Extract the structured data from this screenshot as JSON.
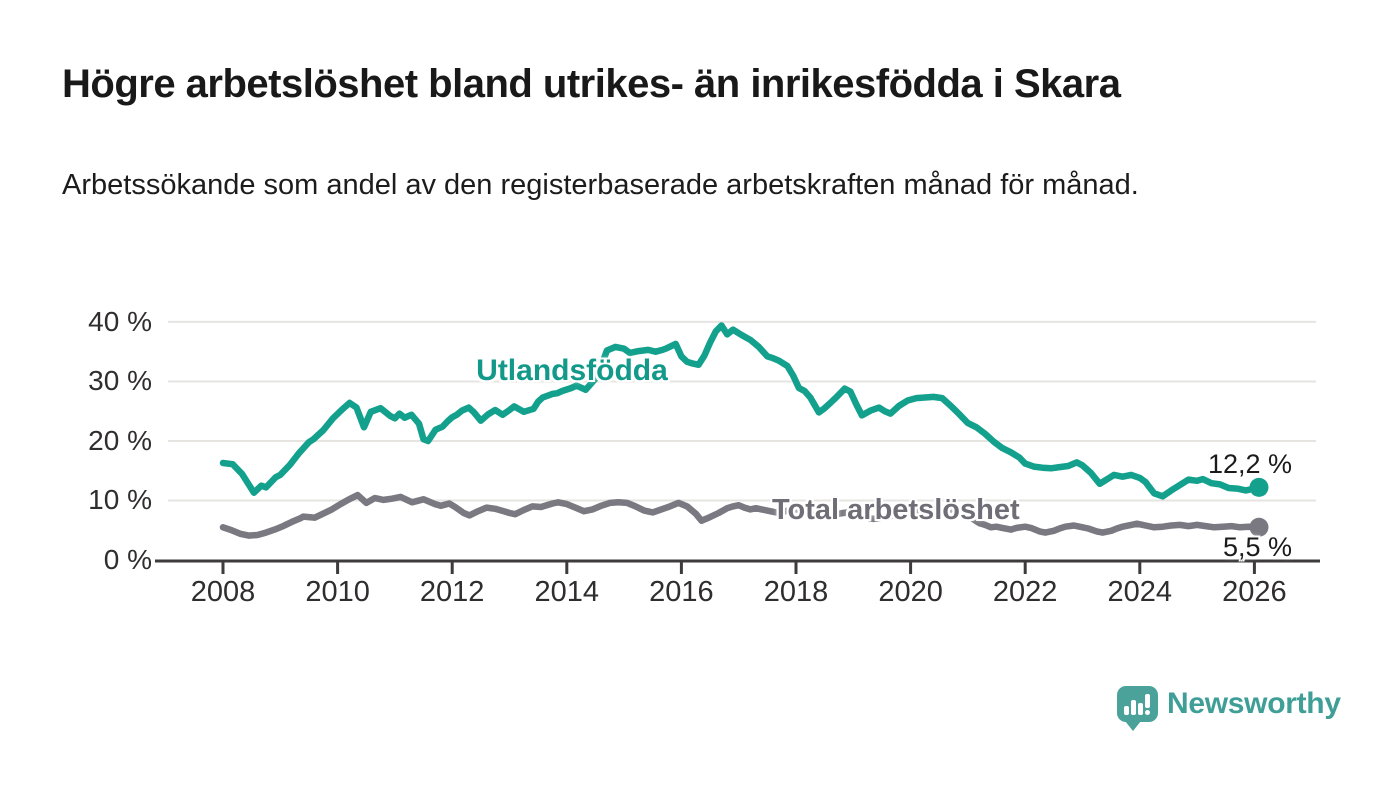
{
  "header": {
    "title": "Högre arbetslöshet bland utrikes- än inrikesfödda i Skara",
    "subtitle": "Arbetssökande som andel av den registerbaserade arbetskraften månad för månad."
  },
  "chart_data": {
    "type": "line",
    "grid": "horizontal",
    "x_axis": {
      "range": [
        2007.4,
        2027.2
      ],
      "ticks": [
        {
          "value": 2008,
          "label": "2008"
        },
        {
          "value": 2010,
          "label": "2010"
        },
        {
          "value": 2012,
          "label": "2012"
        },
        {
          "value": 2014,
          "label": "2014"
        },
        {
          "value": 2016,
          "label": "2016"
        },
        {
          "value": 2018,
          "label": "2018"
        },
        {
          "value": 2020,
          "label": "2020"
        },
        {
          "value": 2022,
          "label": "2022"
        },
        {
          "value": 2024,
          "label": "2024"
        },
        {
          "value": 2026,
          "label": "2026"
        }
      ]
    },
    "y_axis": {
      "unit": "%",
      "range": [
        0,
        42
      ],
      "ticks": [
        {
          "value": 40,
          "label": "40 %"
        },
        {
          "value": 30,
          "label": "30 %"
        },
        {
          "value": 20,
          "label": "20 %"
        },
        {
          "value": 10,
          "label": "10 %"
        },
        {
          "value": 0,
          "label": "0 %"
        }
      ]
    },
    "series": [
      {
        "name": "Utlandsfödda",
        "color": "#13a18d",
        "label_color": "#12998a",
        "end_value": 12.2,
        "end_label": "12,2 %",
        "points": [
          [
            2008.0,
            16.3
          ],
          [
            2008.17,
            16.1
          ],
          [
            2008.33,
            14.5
          ],
          [
            2008.54,
            11.3
          ],
          [
            2008.67,
            12.5
          ],
          [
            2008.75,
            12.2
          ],
          [
            2008.92,
            13.9
          ],
          [
            2009.0,
            14.3
          ],
          [
            2009.17,
            16.0
          ],
          [
            2009.33,
            18.0
          ],
          [
            2009.5,
            19.8
          ],
          [
            2009.58,
            20.3
          ],
          [
            2009.75,
            21.8
          ],
          [
            2009.92,
            23.8
          ],
          [
            2010.08,
            25.3
          ],
          [
            2010.21,
            26.4
          ],
          [
            2010.33,
            25.6
          ],
          [
            2010.46,
            22.3
          ],
          [
            2010.58,
            24.9
          ],
          [
            2010.75,
            25.5
          ],
          [
            2010.92,
            24.2
          ],
          [
            2011.0,
            23.8
          ],
          [
            2011.08,
            24.6
          ],
          [
            2011.17,
            23.9
          ],
          [
            2011.29,
            24.4
          ],
          [
            2011.42,
            22.9
          ],
          [
            2011.5,
            20.3
          ],
          [
            2011.58,
            20.0
          ],
          [
            2011.71,
            21.9
          ],
          [
            2011.83,
            22.4
          ],
          [
            2011.92,
            23.3
          ],
          [
            2012.0,
            24.0
          ],
          [
            2012.08,
            24.4
          ],
          [
            2012.17,
            25.1
          ],
          [
            2012.29,
            25.6
          ],
          [
            2012.38,
            24.8
          ],
          [
            2012.5,
            23.4
          ],
          [
            2012.63,
            24.5
          ],
          [
            2012.75,
            25.2
          ],
          [
            2012.88,
            24.4
          ],
          [
            2013.0,
            25.2
          ],
          [
            2013.08,
            25.8
          ],
          [
            2013.25,
            24.9
          ],
          [
            2013.42,
            25.4
          ],
          [
            2013.5,
            26.6
          ],
          [
            2013.58,
            27.3
          ],
          [
            2013.75,
            27.9
          ],
          [
            2013.83,
            28.0
          ],
          [
            2013.92,
            28.4
          ],
          [
            2014.08,
            28.9
          ],
          [
            2014.17,
            29.3
          ],
          [
            2014.33,
            28.6
          ],
          [
            2014.5,
            30.5
          ],
          [
            2014.58,
            32.0
          ],
          [
            2014.7,
            35.2
          ],
          [
            2014.85,
            35.8
          ],
          [
            2015.0,
            35.5
          ],
          [
            2015.1,
            34.8
          ],
          [
            2015.25,
            35.1
          ],
          [
            2015.42,
            35.3
          ],
          [
            2015.55,
            35.0
          ],
          [
            2015.67,
            35.3
          ],
          [
            2015.75,
            35.6
          ],
          [
            2015.9,
            36.3
          ],
          [
            2016.0,
            34.2
          ],
          [
            2016.1,
            33.3
          ],
          [
            2016.2,
            33.0
          ],
          [
            2016.3,
            32.8
          ],
          [
            2016.4,
            34.3
          ],
          [
            2016.5,
            36.5
          ],
          [
            2016.6,
            38.4
          ],
          [
            2016.7,
            39.4
          ],
          [
            2016.8,
            37.9
          ],
          [
            2016.9,
            38.7
          ],
          [
            2017.05,
            37.8
          ],
          [
            2017.2,
            37.0
          ],
          [
            2017.35,
            35.8
          ],
          [
            2017.5,
            34.2
          ],
          [
            2017.6,
            33.9
          ],
          [
            2017.7,
            33.5
          ],
          [
            2017.85,
            32.6
          ],
          [
            2017.95,
            31.0
          ],
          [
            2018.05,
            28.9
          ],
          [
            2018.15,
            28.4
          ],
          [
            2018.25,
            27.3
          ],
          [
            2018.4,
            24.8
          ],
          [
            2018.5,
            25.5
          ],
          [
            2018.6,
            26.4
          ],
          [
            2018.7,
            27.3
          ],
          [
            2018.85,
            28.8
          ],
          [
            2018.95,
            28.3
          ],
          [
            2019.05,
            26.2
          ],
          [
            2019.15,
            24.3
          ],
          [
            2019.3,
            25.1
          ],
          [
            2019.45,
            25.6
          ],
          [
            2019.55,
            25.0
          ],
          [
            2019.65,
            24.6
          ],
          [
            2019.8,
            25.9
          ],
          [
            2019.95,
            26.8
          ],
          [
            2020.1,
            27.2
          ],
          [
            2020.25,
            27.3
          ],
          [
            2020.4,
            27.4
          ],
          [
            2020.55,
            27.2
          ],
          [
            2020.7,
            25.9
          ],
          [
            2020.85,
            24.5
          ],
          [
            2021.0,
            23.0
          ],
          [
            2021.15,
            22.3
          ],
          [
            2021.3,
            21.2
          ],
          [
            2021.45,
            19.9
          ],
          [
            2021.6,
            18.8
          ],
          [
            2021.75,
            18.1
          ],
          [
            2021.9,
            17.2
          ],
          [
            2022.0,
            16.2
          ],
          [
            2022.15,
            15.7
          ],
          [
            2022.3,
            15.5
          ],
          [
            2022.45,
            15.4
          ],
          [
            2022.6,
            15.6
          ],
          [
            2022.75,
            15.8
          ],
          [
            2022.9,
            16.4
          ],
          [
            2023.0,
            15.9
          ],
          [
            2023.15,
            14.6
          ],
          [
            2023.3,
            12.8
          ],
          [
            2023.45,
            13.7
          ],
          [
            2023.55,
            14.3
          ],
          [
            2023.7,
            14.0
          ],
          [
            2023.85,
            14.3
          ],
          [
            2024.0,
            13.8
          ],
          [
            2024.1,
            13.1
          ],
          [
            2024.25,
            11.2
          ],
          [
            2024.4,
            10.7
          ],
          [
            2024.55,
            11.7
          ],
          [
            2024.7,
            12.6
          ],
          [
            2024.85,
            13.5
          ],
          [
            2025.0,
            13.3
          ],
          [
            2025.1,
            13.6
          ],
          [
            2025.25,
            12.9
          ],
          [
            2025.4,
            12.7
          ],
          [
            2025.55,
            12.1
          ],
          [
            2025.7,
            12.0
          ],
          [
            2025.85,
            11.7
          ],
          [
            2026.0,
            12.0
          ],
          [
            2026.08,
            12.2
          ]
        ]
      },
      {
        "name": "Total arbetslöshet",
        "color": "#7a7880",
        "label_color": "#6f6d76",
        "end_value": 5.5,
        "end_label": "5,5 %",
        "points": [
          [
            2008.0,
            5.5
          ],
          [
            2008.15,
            5.0
          ],
          [
            2008.3,
            4.4
          ],
          [
            2008.45,
            4.1
          ],
          [
            2008.6,
            4.2
          ],
          [
            2008.75,
            4.6
          ],
          [
            2008.9,
            5.1
          ],
          [
            2009.05,
            5.7
          ],
          [
            2009.2,
            6.4
          ],
          [
            2009.35,
            7.0
          ],
          [
            2009.4,
            7.3
          ],
          [
            2009.5,
            7.2
          ],
          [
            2009.6,
            7.1
          ],
          [
            2009.75,
            7.8
          ],
          [
            2009.9,
            8.5
          ],
          [
            2010.05,
            9.4
          ],
          [
            2010.2,
            10.2
          ],
          [
            2010.35,
            10.9
          ],
          [
            2010.5,
            9.6
          ],
          [
            2010.65,
            10.4
          ],
          [
            2010.8,
            10.1
          ],
          [
            2010.95,
            10.3
          ],
          [
            2011.1,
            10.6
          ],
          [
            2011.3,
            9.7
          ],
          [
            2011.5,
            10.2
          ],
          [
            2011.7,
            9.4
          ],
          [
            2011.8,
            9.1
          ],
          [
            2011.95,
            9.5
          ],
          [
            2012.05,
            8.9
          ],
          [
            2012.2,
            7.9
          ],
          [
            2012.3,
            7.5
          ],
          [
            2012.45,
            8.2
          ],
          [
            2012.6,
            8.8
          ],
          [
            2012.75,
            8.6
          ],
          [
            2012.9,
            8.2
          ],
          [
            2013.0,
            7.9
          ],
          [
            2013.1,
            7.7
          ],
          [
            2013.25,
            8.4
          ],
          [
            2013.4,
            9.0
          ],
          [
            2013.55,
            8.9
          ],
          [
            2013.75,
            9.5
          ],
          [
            2013.85,
            9.7
          ],
          [
            2014.0,
            9.4
          ],
          [
            2014.15,
            8.8
          ],
          [
            2014.3,
            8.2
          ],
          [
            2014.45,
            8.5
          ],
          [
            2014.6,
            9.1
          ],
          [
            2014.75,
            9.6
          ],
          [
            2014.9,
            9.7
          ],
          [
            2015.05,
            9.6
          ],
          [
            2015.2,
            9.0
          ],
          [
            2015.35,
            8.3
          ],
          [
            2015.5,
            8.0
          ],
          [
            2015.65,
            8.5
          ],
          [
            2015.8,
            9.0
          ],
          [
            2015.95,
            9.6
          ],
          [
            2016.1,
            9.0
          ],
          [
            2016.25,
            7.8
          ],
          [
            2016.35,
            6.6
          ],
          [
            2016.5,
            7.2
          ],
          [
            2016.65,
            7.9
          ],
          [
            2016.8,
            8.7
          ],
          [
            2016.9,
            9.0
          ],
          [
            2017.0,
            9.2
          ],
          [
            2017.1,
            8.8
          ],
          [
            2017.2,
            8.5
          ],
          [
            2017.3,
            8.7
          ],
          [
            2017.4,
            8.5
          ],
          [
            2017.55,
            8.2
          ],
          [
            2017.7,
            7.9
          ],
          [
            2017.85,
            8.3
          ],
          [
            2018.0,
            8.5
          ],
          [
            2018.15,
            8.1
          ],
          [
            2018.3,
            7.6
          ],
          [
            2018.45,
            7.3
          ],
          [
            2018.6,
            7.5
          ],
          [
            2018.75,
            7.8
          ],
          [
            2018.9,
            8.0
          ],
          [
            2019.05,
            7.7
          ],
          [
            2019.2,
            7.2
          ],
          [
            2019.35,
            6.9
          ],
          [
            2019.5,
            7.1
          ],
          [
            2019.65,
            7.4
          ],
          [
            2019.8,
            7.7
          ],
          [
            2019.95,
            8.0
          ],
          [
            2020.1,
            8.3
          ],
          [
            2020.3,
            8.6
          ],
          [
            2020.5,
            8.8
          ],
          [
            2020.7,
            8.5
          ],
          [
            2020.9,
            8.0
          ],
          [
            2021.0,
            7.4
          ],
          [
            2021.1,
            6.8
          ],
          [
            2021.2,
            6.2
          ],
          [
            2021.3,
            5.9
          ],
          [
            2021.4,
            5.5
          ],
          [
            2021.5,
            5.6
          ],
          [
            2021.6,
            5.4
          ],
          [
            2021.75,
            5.1
          ],
          [
            2021.85,
            5.4
          ],
          [
            2022.0,
            5.6
          ],
          [
            2022.1,
            5.4
          ],
          [
            2022.25,
            4.8
          ],
          [
            2022.35,
            4.6
          ],
          [
            2022.5,
            4.9
          ],
          [
            2022.6,
            5.3
          ],
          [
            2022.7,
            5.6
          ],
          [
            2022.85,
            5.8
          ],
          [
            2022.95,
            5.6
          ],
          [
            2023.1,
            5.3
          ],
          [
            2023.25,
            4.8
          ],
          [
            2023.35,
            4.6
          ],
          [
            2023.5,
            4.9
          ],
          [
            2023.6,
            5.3
          ],
          [
            2023.7,
            5.6
          ],
          [
            2023.85,
            5.9
          ],
          [
            2023.95,
            6.1
          ],
          [
            2024.1,
            5.8
          ],
          [
            2024.25,
            5.5
          ],
          [
            2024.4,
            5.6
          ],
          [
            2024.55,
            5.8
          ],
          [
            2024.7,
            5.9
          ],
          [
            2024.85,
            5.7
          ],
          [
            2025.0,
            5.9
          ],
          [
            2025.15,
            5.7
          ],
          [
            2025.3,
            5.5
          ],
          [
            2025.45,
            5.6
          ],
          [
            2025.6,
            5.7
          ],
          [
            2025.75,
            5.5
          ],
          [
            2025.9,
            5.6
          ],
          [
            2026.08,
            5.5
          ]
        ]
      }
    ],
    "style": {
      "gridline_color": "#e6e4e1",
      "axis_color": "#3d3b3c",
      "tick_label_color": "#2f2d2e"
    }
  },
  "footer": {
    "logo_text": "Newsworthy",
    "logo_icon": "bar-chart-speech-bubble-icon",
    "logo_color": "#4aa29a"
  }
}
